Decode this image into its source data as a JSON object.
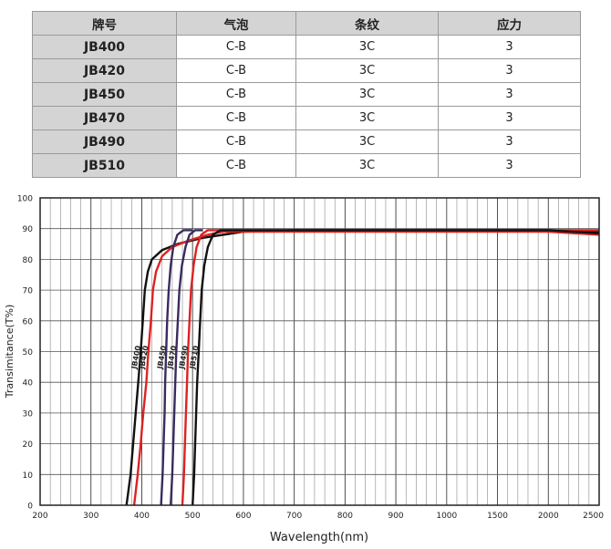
{
  "table": {
    "headers": [
      "牌号",
      "气泡",
      "条纹",
      "应力"
    ],
    "rows": [
      [
        "JB400",
        "C-B",
        "3C",
        "3"
      ],
      [
        "JB420",
        "C-B",
        "3C",
        "3"
      ],
      [
        "JB450",
        "C-B",
        "3C",
        "3"
      ],
      [
        "JB470",
        "C-B",
        "3C",
        "3"
      ],
      [
        "JB490",
        "C-B",
        "3C",
        "3"
      ],
      [
        "JB510",
        "C-B",
        "3C",
        "3"
      ]
    ]
  },
  "chart_data": {
    "type": "line",
    "xlabel": "Wavelength(nm)",
    "ylabel": "Transimitance(T%)",
    "xticks": [
      200,
      300,
      400,
      500,
      600,
      700,
      800,
      900,
      1000,
      1500,
      2000,
      2500
    ],
    "yticks": [
      0,
      10,
      20,
      30,
      40,
      50,
      60,
      70,
      80,
      90,
      100
    ],
    "ylim": [
      0,
      100
    ],
    "grid": true,
    "series": [
      {
        "name": "JB400",
        "color": "#111111",
        "points": [
          [
            370,
            0
          ],
          [
            378,
            10
          ],
          [
            383,
            20
          ],
          [
            388,
            30
          ],
          [
            393,
            40
          ],
          [
            398,
            50
          ],
          [
            402,
            60
          ],
          [
            406,
            70
          ],
          [
            412,
            76
          ],
          [
            420,
            80
          ],
          [
            440,
            83
          ],
          [
            470,
            85
          ],
          [
            520,
            87
          ],
          [
            600,
            89
          ],
          [
            700,
            89.5
          ],
          [
            1000,
            89.5
          ],
          [
            1500,
            89.5
          ],
          [
            2000,
            89.5
          ],
          [
            2500,
            89
          ]
        ]
      },
      {
        "name": "JB420",
        "color": "#dd2222",
        "points": [
          [
            385,
            0
          ],
          [
            392,
            10
          ],
          [
            398,
            20
          ],
          [
            403,
            30
          ],
          [
            409,
            40
          ],
          [
            413,
            50
          ],
          [
            418,
            60
          ],
          [
            422,
            70
          ],
          [
            428,
            76
          ],
          [
            440,
            81
          ],
          [
            460,
            84
          ],
          [
            490,
            86
          ],
          [
            530,
            88
          ],
          [
            560,
            89
          ],
          [
            600,
            89
          ],
          [
            1000,
            89
          ],
          [
            1500,
            89
          ],
          [
            2000,
            89
          ],
          [
            2500,
            88
          ]
        ]
      },
      {
        "name": "JB450",
        "color": "#3a2a5e",
        "points": [
          [
            438,
            0
          ],
          [
            441,
            10
          ],
          [
            443,
            20
          ],
          [
            445,
            30
          ],
          [
            446,
            40
          ],
          [
            448,
            50
          ],
          [
            450,
            60
          ],
          [
            453,
            70
          ],
          [
            457,
            78
          ],
          [
            462,
            84
          ],
          [
            470,
            88
          ],
          [
            482,
            89.5
          ],
          [
            500,
            89.5
          ]
        ]
      },
      {
        "name": "JB470",
        "color": "#3a2a5e",
        "points": [
          [
            457,
            0
          ],
          [
            460,
            10
          ],
          [
            462,
            20
          ],
          [
            464,
            30
          ],
          [
            466,
            40
          ],
          [
            468,
            50
          ],
          [
            471,
            60
          ],
          [
            474,
            70
          ],
          [
            479,
            78
          ],
          [
            486,
            84
          ],
          [
            494,
            88
          ],
          [
            505,
            89.5
          ],
          [
            520,
            89.5
          ]
        ]
      },
      {
        "name": "JB490",
        "color": "#dd2222",
        "points": [
          [
            480,
            0
          ],
          [
            483,
            10
          ],
          [
            485,
            20
          ],
          [
            487,
            30
          ],
          [
            489,
            40
          ],
          [
            491,
            50
          ],
          [
            494,
            60
          ],
          [
            497,
            70
          ],
          [
            502,
            78
          ],
          [
            508,
            84
          ],
          [
            517,
            88
          ],
          [
            530,
            89.5
          ],
          [
            560,
            89.5
          ],
          [
            600,
            89.5
          ],
          [
            700,
            89.5
          ],
          [
            1000,
            89.5
          ],
          [
            1500,
            89.5
          ],
          [
            2000,
            89.5
          ],
          [
            2500,
            89.5
          ]
        ]
      },
      {
        "name": "JB510",
        "color": "#111111",
        "points": [
          [
            500,
            0
          ],
          [
            503,
            10
          ],
          [
            505,
            20
          ],
          [
            507,
            30
          ],
          [
            509,
            40
          ],
          [
            512,
            50
          ],
          [
            515,
            60
          ],
          [
            518,
            70
          ],
          [
            523,
            78
          ],
          [
            530,
            84
          ],
          [
            540,
            88
          ],
          [
            555,
            89.5
          ],
          [
            580,
            89.5
          ],
          [
            600,
            89.5
          ],
          [
            700,
            89.5
          ],
          [
            1000,
            89.5
          ],
          [
            1500,
            89.5
          ],
          [
            2000,
            89.5
          ],
          [
            2500,
            88.5
          ]
        ]
      }
    ]
  }
}
